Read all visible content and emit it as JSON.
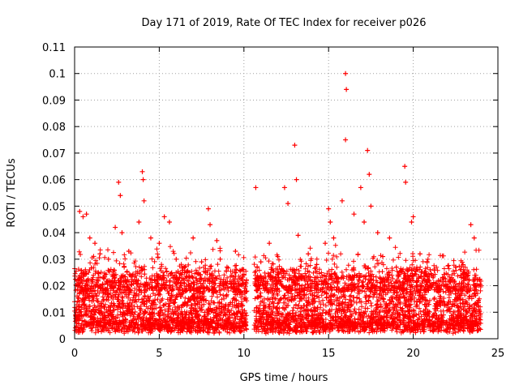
{
  "chart_data": {
    "type": "scatter",
    "title": "Day 171 of 2019, Rate Of TEC Index for receiver p026",
    "xlabel": "GPS time / hours",
    "ylabel": "ROTI / TECUs",
    "xlim": [
      0,
      25
    ],
    "ylim": [
      0,
      0.11
    ],
    "xticks": [
      0,
      5,
      10,
      15,
      20,
      25
    ],
    "xtick_labels": [
      "0",
      "5",
      "10",
      "15",
      "20",
      "25"
    ],
    "yticks": [
      0,
      0.01,
      0.02,
      0.03,
      0.04,
      0.05,
      0.06,
      0.07,
      0.08,
      0.09,
      0.1,
      0.11
    ],
    "ytick_labels": [
      "0",
      "0.01",
      "0.02",
      "0.03",
      "0.04",
      "0.05",
      "0.06",
      "0.07",
      "0.08",
      "0.09",
      "0.1",
      "0.11"
    ],
    "grid": true,
    "marker": "plus",
    "series_color": "#ff0000",
    "gap_hours": [
      10.2,
      10.6
    ],
    "points": [
      [
        0.3,
        0.048
      ],
      [
        0.5,
        0.046
      ],
      [
        0.7,
        0.047
      ],
      [
        0.9,
        0.038
      ],
      [
        1.2,
        0.036
      ],
      [
        1.5,
        0.032
      ],
      [
        2.0,
        0.03
      ],
      [
        2.4,
        0.042
      ],
      [
        2.6,
        0.059
      ],
      [
        2.7,
        0.054
      ],
      [
        2.8,
        0.04
      ],
      [
        3.2,
        0.033
      ],
      [
        3.8,
        0.044
      ],
      [
        4.0,
        0.063
      ],
      [
        4.05,
        0.06
      ],
      [
        4.1,
        0.052
      ],
      [
        4.5,
        0.038
      ],
      [
        5.0,
        0.036
      ],
      [
        5.3,
        0.046
      ],
      [
        5.6,
        0.044
      ],
      [
        6.0,
        0.03
      ],
      [
        6.5,
        0.025
      ],
      [
        7.0,
        0.038
      ],
      [
        7.5,
        0.029
      ],
      [
        7.9,
        0.049
      ],
      [
        8.0,
        0.043
      ],
      [
        8.4,
        0.037
      ],
      [
        8.6,
        0.03
      ],
      [
        9.0,
        0.027
      ],
      [
        9.5,
        0.033
      ],
      [
        10.0,
        0.024
      ],
      [
        10.7,
        0.057
      ],
      [
        11.0,
        0.029
      ],
      [
        11.5,
        0.036
      ],
      [
        12.0,
        0.031
      ],
      [
        12.4,
        0.057
      ],
      [
        12.6,
        0.051
      ],
      [
        13.0,
        0.073
      ],
      [
        13.1,
        0.06
      ],
      [
        13.2,
        0.039
      ],
      [
        13.8,
        0.032
      ],
      [
        14.3,
        0.028
      ],
      [
        14.8,
        0.036
      ],
      [
        15.0,
        0.049
      ],
      [
        15.1,
        0.044
      ],
      [
        15.3,
        0.038
      ],
      [
        15.8,
        0.052
      ],
      [
        16.0,
        0.1
      ],
      [
        16.05,
        0.094
      ],
      [
        16.0,
        0.075
      ],
      [
        16.5,
        0.047
      ],
      [
        16.9,
        0.057
      ],
      [
        17.1,
        0.044
      ],
      [
        17.3,
        0.071
      ],
      [
        17.4,
        0.062
      ],
      [
        17.5,
        0.05
      ],
      [
        17.9,
        0.04
      ],
      [
        18.2,
        0.031
      ],
      [
        18.6,
        0.038
      ],
      [
        19.0,
        0.027
      ],
      [
        19.5,
        0.065
      ],
      [
        19.55,
        0.059
      ],
      [
        19.9,
        0.044
      ],
      [
        20.0,
        0.046
      ],
      [
        20.4,
        0.032
      ],
      [
        21.0,
        0.026
      ],
      [
        21.5,
        0.022
      ],
      [
        22.0,
        0.019
      ],
      [
        22.5,
        0.027
      ],
      [
        23.0,
        0.022
      ],
      [
        23.4,
        0.043
      ],
      [
        23.6,
        0.038
      ]
    ]
  }
}
